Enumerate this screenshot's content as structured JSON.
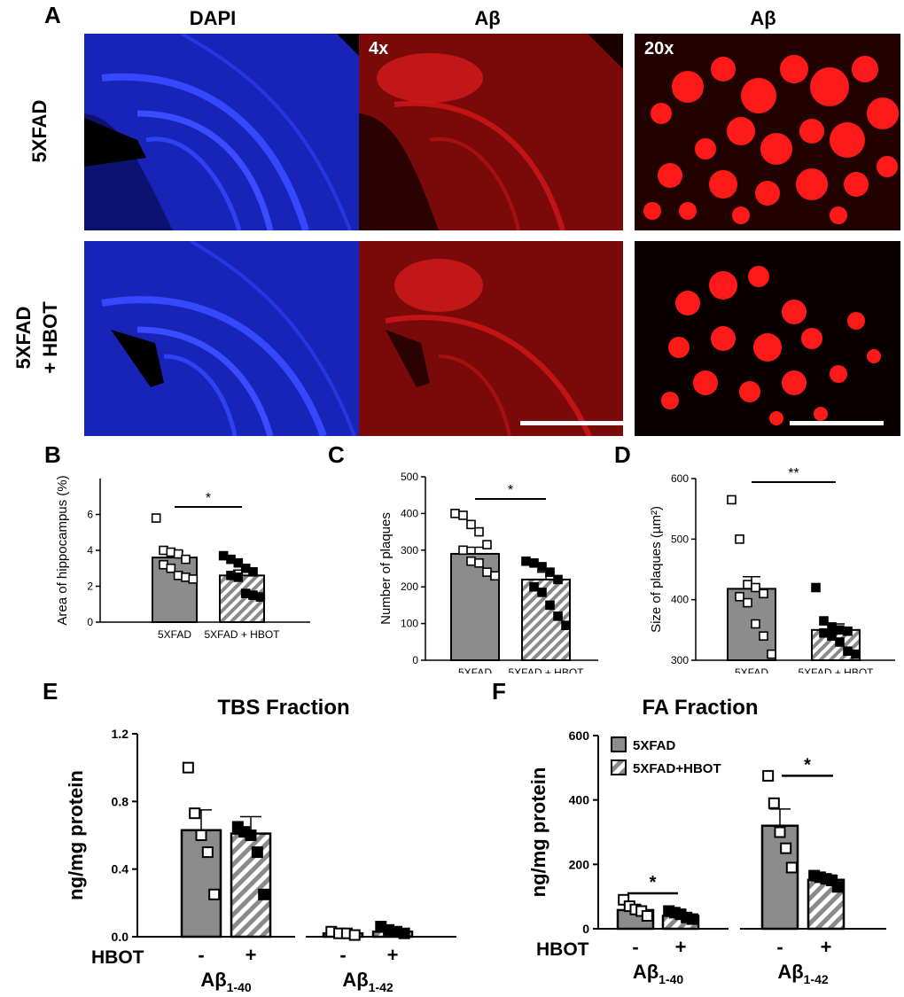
{
  "figure": {
    "panel_letters": {
      "A": "A",
      "B": "B",
      "C": "C",
      "D": "D",
      "E": "E",
      "F": "F"
    },
    "panelA": {
      "column_titles": [
        "DAPI",
        "Aβ",
        "Aβ"
      ],
      "row_labels": [
        "5XFAD",
        "5XFAD",
        "+ HBOT"
      ],
      "magnifications": [
        "4x",
        "20x"
      ],
      "colors": {
        "dapi": "#1f2bd6",
        "abeta": "#e31010"
      }
    }
  },
  "chart_data": [
    {
      "id": "B",
      "type": "bar",
      "categories": [
        "5XFAD",
        "5XFAD + HBOT"
      ],
      "values": [
        3.6,
        2.6
      ],
      "sem": [
        0.35,
        0.3
      ],
      "ylabel": "Area of hippocampus (%)",
      "ylim": [
        0,
        8
      ],
      "yticks": [
        "0",
        "2",
        "4",
        "6"
      ],
      "significance": "*",
      "points": [
        [
          5.8,
          4.0,
          3.9,
          3.8,
          3.5,
          3.2,
          3.0,
          2.6,
          2.5,
          2.4
        ],
        [
          3.7,
          3.5,
          3.3,
          3.0,
          2.8,
          2.6,
          2.5,
          1.6,
          1.5,
          1.4
        ]
      ]
    },
    {
      "id": "C",
      "type": "bar",
      "categories": [
        "5XFAD",
        "5XFAD + HBOT"
      ],
      "values": [
        290,
        220
      ],
      "sem": [
        18,
        20
      ],
      "ylabel": "Number of plaques",
      "ylim": [
        0,
        500
      ],
      "yticks": [
        "0",
        "100",
        "200",
        "300",
        "400",
        "500"
      ],
      "significance": "*",
      "points": [
        [
          400,
          395,
          370,
          350,
          315,
          300,
          270,
          265,
          240,
          230
        ],
        [
          270,
          265,
          255,
          240,
          220,
          200,
          185,
          150,
          120,
          95
        ]
      ]
    },
    {
      "id": "D",
      "type": "bar",
      "categories": [
        "5XFAD",
        "5XFAD + HBOT"
      ],
      "values": [
        418,
        350
      ],
      "sem": [
        20,
        10
      ],
      "ylabel": "Size of plaques (µm²)",
      "ylim": [
        300,
        600
      ],
      "yticks": [
        "300",
        "400",
        "500",
        "600"
      ],
      "significance": "**",
      "points": [
        [
          565,
          500,
          425,
          420,
          410,
          405,
          395,
          360,
          340,
          310
        ],
        [
          420,
          365,
          355,
          350,
          348,
          345,
          340,
          330,
          315,
          310
        ]
      ]
    },
    {
      "id": "E",
      "type": "bar",
      "title": "TBS Fraction",
      "ylabel": "ng/mg protein",
      "ylim": [
        0,
        1.2
      ],
      "yticks": [
        "0.0",
        "0.4",
        "0.8",
        "1.2"
      ],
      "hbot_label": "HBOT",
      "group_labels": [
        "Aβ",
        "Aβ"
      ],
      "group_subscripts": [
        "1-40",
        "1-42"
      ],
      "signs": [
        "-",
        "+",
        "-",
        "+"
      ],
      "values": [
        0.63,
        0.61,
        0.02,
        0.03
      ],
      "sem": [
        0.12,
        0.1,
        0.005,
        0.01
      ],
      "points": [
        [
          1.0,
          0.73,
          0.6,
          0.5,
          0.25
        ],
        [
          0.65,
          0.62,
          0.6,
          0.5,
          0.25
        ],
        [
          0.03,
          0.02,
          0.02,
          0.01
        ],
        [
          0.06,
          0.04,
          0.03,
          0.02
        ]
      ]
    },
    {
      "id": "F",
      "type": "bar",
      "title": "FA Fraction",
      "ylabel": "ng/mg protein",
      "ylim": [
        0,
        600
      ],
      "yticks": [
        "0",
        "200",
        "400",
        "600"
      ],
      "hbot_label": "HBOT",
      "group_labels": [
        "Aβ",
        "Aβ"
      ],
      "group_subscripts": [
        "1-40",
        "1-42"
      ],
      "signs": [
        "-",
        "+",
        "-",
        "+"
      ],
      "values": [
        58,
        40,
        320,
        152
      ],
      "sem": [
        12,
        8,
        52,
        15
      ],
      "points": [
        [
          90,
          70,
          60,
          55,
          40
        ],
        [
          55,
          50,
          45,
          35,
          30
        ],
        [
          475,
          390,
          300,
          250,
          190
        ],
        [
          165,
          160,
          155,
          150,
          130
        ]
      ],
      "legend": [
        "5XFAD",
        "5XFAD+HBOT"
      ],
      "significance": [
        "*",
        "*"
      ]
    }
  ]
}
